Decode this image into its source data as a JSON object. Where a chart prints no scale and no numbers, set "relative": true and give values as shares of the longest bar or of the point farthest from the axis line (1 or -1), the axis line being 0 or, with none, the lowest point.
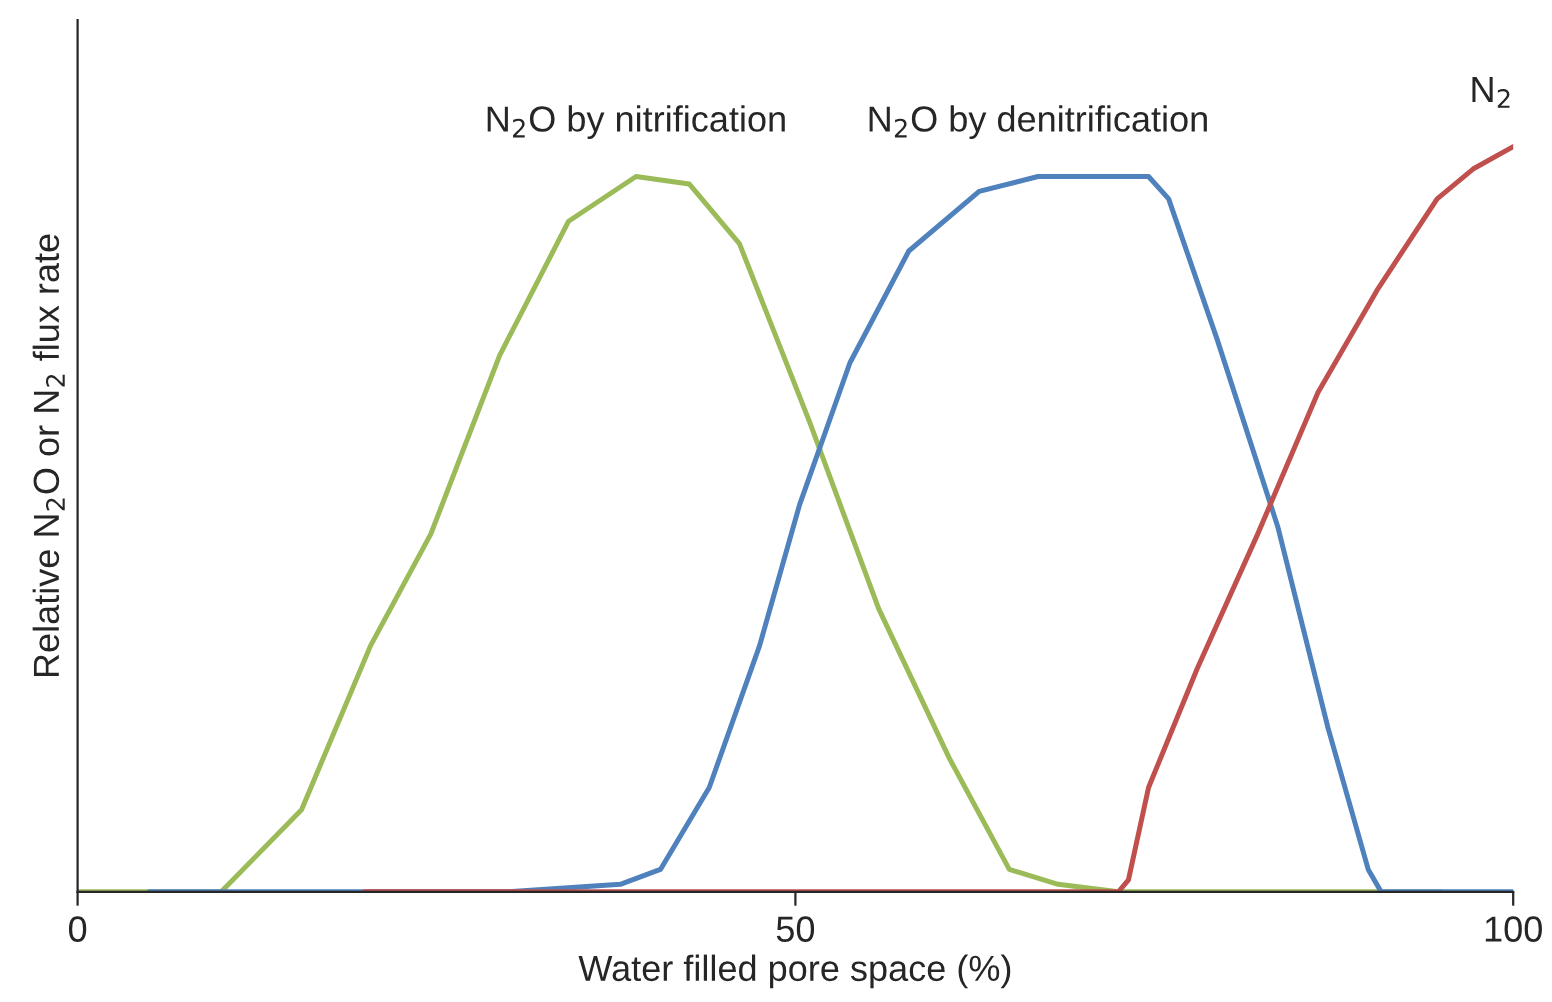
{
  "chart_data": {
    "type": "line",
    "relative": true,
    "xlabel": "Water filled pore space (%)",
    "ylabel": "Relative N$_{2}$O or N$_{2}$ flux rate",
    "xlim": [
      0,
      100
    ],
    "xticks": [
      0,
      50,
      100
    ],
    "grid": false,
    "legend": false,
    "marker": "none",
    "line_style": "solid",
    "series": [
      {
        "name": "N$_{2}$O by nitrification",
        "color": "#9bbb59",
        "x": [
          0,
          10,
          15.6,
          20.4,
          24.6,
          29.4,
          34.2,
          38.9,
          42.6,
          46.1,
          51,
          55.8,
          60.7,
          64.9,
          68.3,
          72.5,
          95
        ],
        "values": [
          0,
          0,
          0.11,
          0.33,
          0.48,
          0.72,
          0.9,
          0.96,
          0.95,
          0.87,
          0.63,
          0.38,
          0.18,
          0.03,
          0.01,
          0,
          0
        ]
      },
      {
        "name": "N$_{2}$O by denitrification",
        "color": "#4f81bd",
        "x": [
          5,
          30,
          37.8,
          40.6,
          44,
          47.5,
          50.3,
          53.8,
          57.9,
          62.8,
          66.9,
          74.6,
          76,
          79.4,
          83.6,
          87.1,
          89.9,
          90.8,
          100
        ],
        "values": [
          0,
          0,
          0.01,
          0.03,
          0.14,
          0.33,
          0.52,
          0.71,
          0.86,
          0.94,
          0.96,
          0.96,
          0.93,
          0.74,
          0.49,
          0.22,
          0.03,
          0,
          0
        ]
      },
      {
        "name": "N$_{2}$",
        "color": "#c0504d",
        "x": [
          20,
          72.5,
          73.2,
          74.6,
          78,
          82.2,
          86.4,
          90.6,
          94.7,
          97.2,
          100
        ],
        "values": [
          0,
          0,
          0.016,
          0.14,
          0.3,
          0.48,
          0.67,
          0.81,
          0.93,
          0.97,
          1
        ]
      }
    ]
  }
}
